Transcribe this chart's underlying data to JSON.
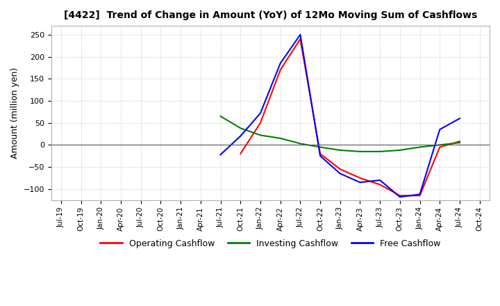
{
  "title": "[4422]  Trend of Change in Amount (YoY) of 12Mo Moving Sum of Cashflows",
  "ylabel": "Amount (million yen)",
  "ylim": [
    -125,
    270
  ],
  "yticks": [
    -100,
    -50,
    0,
    50,
    100,
    150,
    200,
    250
  ],
  "background_color": "#ffffff",
  "grid_color": "#aaaaaa",
  "dates": [
    "Jul-19",
    "Oct-19",
    "Jan-20",
    "Apr-20",
    "Jul-20",
    "Oct-20",
    "Jan-21",
    "Apr-21",
    "Jul-21",
    "Oct-21",
    "Jan-22",
    "Apr-22",
    "Jul-22",
    "Oct-22",
    "Jan-23",
    "Apr-23",
    "Jul-23",
    "Oct-23",
    "Jan-24",
    "Apr-24",
    "Jul-24",
    "Oct-24"
  ],
  "operating_cashflow": [
    null,
    null,
    null,
    null,
    null,
    null,
    null,
    null,
    null,
    -20,
    50,
    170,
    240,
    -20,
    -55,
    -75,
    -90,
    -115,
    -115,
    -5,
    8,
    null
  ],
  "investing_cashflow": [
    null,
    null,
    null,
    null,
    null,
    null,
    null,
    null,
    65,
    38,
    22,
    15,
    3,
    -5,
    -12,
    -15,
    -15,
    -12,
    -5,
    0,
    5,
    null
  ],
  "free_cashflow": [
    null,
    null,
    null,
    null,
    null,
    null,
    null,
    null,
    -22,
    20,
    72,
    185,
    250,
    -25,
    -65,
    -85,
    -80,
    -118,
    -112,
    35,
    60,
    null
  ],
  "operating_color": "#ff0000",
  "investing_color": "#008000",
  "free_color": "#0000ff",
  "line_width": 1.5
}
